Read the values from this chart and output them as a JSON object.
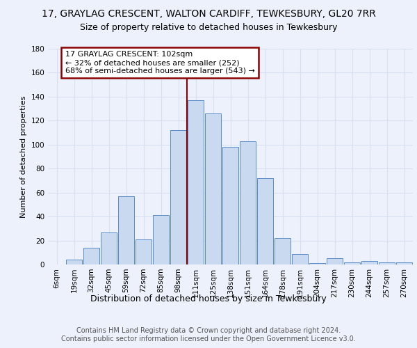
{
  "title_line1": "17, GRAYLAG CRESCENT, WALTON CARDIFF, TEWKESBURY, GL20 7RR",
  "title_line2": "Size of property relative to detached houses in Tewkesbury",
  "xlabel": "Distribution of detached houses by size in Tewkesbury",
  "ylabel": "Number of detached properties",
  "categories": [
    "6sqm",
    "19sqm",
    "32sqm",
    "45sqm",
    "59sqm",
    "72sqm",
    "85sqm",
    "98sqm",
    "111sqm",
    "125sqm",
    "138sqm",
    "151sqm",
    "164sqm",
    "178sqm",
    "191sqm",
    "204sqm",
    "217sqm",
    "230sqm",
    "244sqm",
    "257sqm",
    "270sqm"
  ],
  "values": [
    0,
    4,
    14,
    27,
    57,
    21,
    41,
    112,
    137,
    126,
    98,
    103,
    72,
    22,
    9,
    1,
    5,
    2,
    3,
    2,
    2
  ],
  "bar_color": "#c9d9f0",
  "bar_edge_color": "#5b8cc8",
  "highlight_line_color": "#8b0000",
  "annotation_text": "17 GRAYLAG CRESCENT: 102sqm\n← 32% of detached houses are smaller (252)\n68% of semi-detached houses are larger (543) →",
  "annotation_box_color": "#ffffff",
  "annotation_box_edge_color": "#8b0000",
  "ylim": [
    0,
    180
  ],
  "yticks": [
    0,
    20,
    40,
    60,
    80,
    100,
    120,
    140,
    160,
    180
  ],
  "background_color": "#edf1fb",
  "grid_color": "#d8dff0",
  "footer_text": "Contains HM Land Registry data © Crown copyright and database right 2024.\nContains public sector information licensed under the Open Government Licence v3.0.",
  "title_fontsize": 10,
  "subtitle_fontsize": 9,
  "annotation_fontsize": 8,
  "footer_fontsize": 7,
  "ylabel_fontsize": 8,
  "tick_fontsize": 7.5,
  "xlabel_fontsize": 9
}
